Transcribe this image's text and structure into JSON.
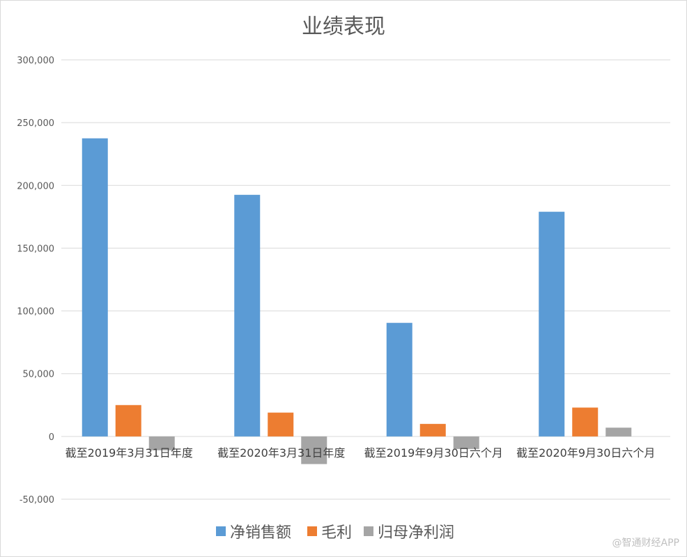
{
  "chart_data": {
    "type": "bar",
    "title": "业绩表现",
    "categories": [
      "截至2019年3月31日年度",
      "截至2020年3月31日年度",
      "截至2019年9月30日六个月",
      "截至2020年9月30日六个月"
    ],
    "series": [
      {
        "name": "净销售额",
        "color": "#5b9bd5",
        "values": [
          237500,
          192500,
          90500,
          179000
        ]
      },
      {
        "name": "毛利",
        "color": "#ed7d31",
        "values": [
          25000,
          19000,
          10000,
          23000
        ]
      },
      {
        "name": "归母净利润",
        "color": "#a5a5a5",
        "values": [
          -11000,
          -22000,
          -10000,
          7000
        ]
      }
    ],
    "yticks": [
      "300,000",
      "250,000",
      "200,000",
      "150,000",
      "100,000",
      "50,000",
      "0",
      "-50,000"
    ],
    "ylim": [
      -50000,
      300000
    ],
    "grid": true,
    "legend": "bottom"
  },
  "watermark": "@智通财经APP"
}
